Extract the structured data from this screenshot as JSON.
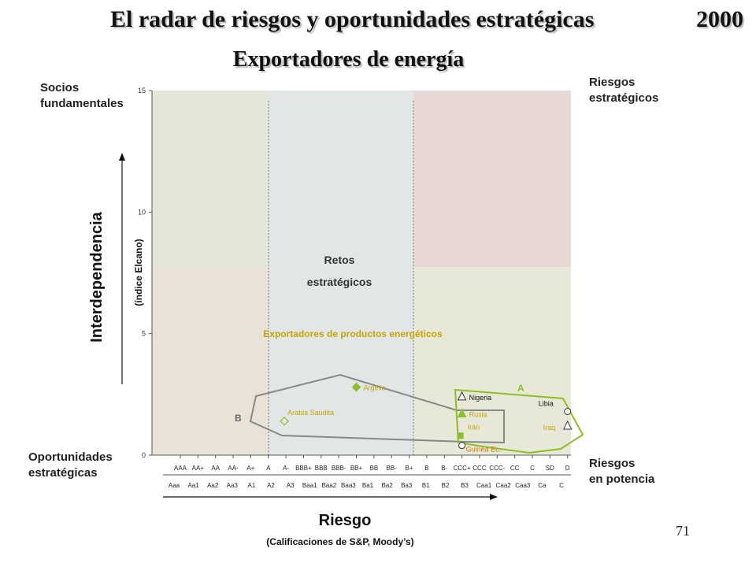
{
  "header": {
    "title": "El radar de riesgos y oportunidades estratégicas",
    "year": "2000",
    "subtitle": "Exportadores de energía"
  },
  "corners": {
    "top_left": [
      "Socios",
      "fundamentales"
    ],
    "top_right": [
      "Riesgos",
      "estratégicos"
    ],
    "bottom_left": [
      "Oportunidades",
      "estratégicas"
    ],
    "bottom_right": [
      "Riesgos",
      "en potencia"
    ]
  },
  "page_number": "71",
  "colors": {
    "green": "#8cbf26",
    "gray_line": "#888888",
    "zone_green": "#e3e6d8",
    "zone_blue": "#e1e6e7",
    "zone_pink": "#e7d8d6",
    "zone_beige": "#e8e2d7",
    "zone_olive": "#e7e8d7"
  },
  "chart_data": {
    "type": "scatter",
    "xlabel": "Riesgo",
    "xlabel_sub": "(Calificaciones de S&P, Moody’s)",
    "ylabel": "Interdependencia",
    "ylabel_sub": "(índice Elcano)",
    "ylim": [
      0,
      15
    ],
    "y_ticks": [
      0,
      5,
      10,
      15
    ],
    "x_ticks_sp": [
      "AAA",
      "AA+",
      "AA",
      "AA-",
      "A+",
      "A",
      "A-",
      "BBB+",
      "BBB",
      "BBB-",
      "BB+",
      "BB",
      "BB-",
      "B+",
      "B",
      "B-",
      "CCC+",
      "CCC",
      "CCC-",
      "CC",
      "C",
      "SD",
      "D"
    ],
    "x_ticks_moodys": [
      "Aaa",
      "Aa1",
      "Aa2",
      "Aa3",
      "A1",
      "A2",
      "A3",
      "Baa1",
      "Baa2",
      "Baa3",
      "Ba1",
      "Ba2",
      "Ba3",
      "B1",
      "B2",
      "B3",
      "Caa1",
      "Caa2",
      "Caa3",
      "Ca",
      "C"
    ],
    "zone_label": [
      "Retos",
      "estratégicos"
    ],
    "group_title": "Exportadores de productos energéticos",
    "group_labels": [
      "A",
      "B"
    ],
    "points": [
      {
        "name": "Argelia",
        "rating": "BB+",
        "y": 2.8,
        "marker": "diamond-filled"
      },
      {
        "name": "Arabia Saudita",
        "rating": "A-",
        "y": 1.4,
        "marker": "diamond-open"
      },
      {
        "name": "Nigeria",
        "rating": "CCC+",
        "y": 2.4,
        "marker": "triangle-open"
      },
      {
        "name": "Rusia",
        "rating": "CCC+",
        "y": 1.7,
        "marker": "triangle-filled"
      },
      {
        "name": "Irán",
        "rating": "CCC+",
        "y": 0.8,
        "marker": "square-filled"
      },
      {
        "name": "Guinea Ec.",
        "rating": "CCC+",
        "y": 0.4,
        "marker": "circle-open"
      },
      {
        "name": "Libia",
        "rating": "D",
        "y": 1.8,
        "marker": "circle-open"
      },
      {
        "name": "Iraq",
        "rating": "D",
        "y": 1.2,
        "marker": "triangle-open"
      }
    ]
  }
}
